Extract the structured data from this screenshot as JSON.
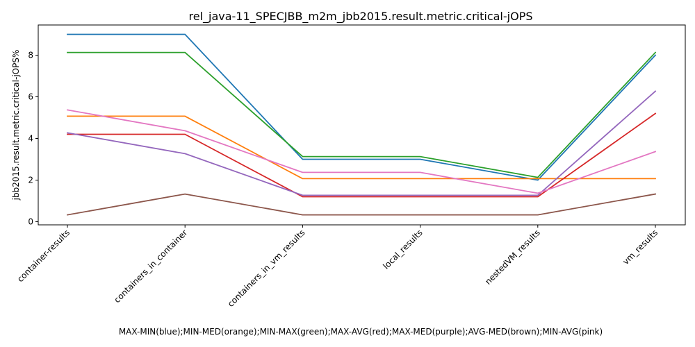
{
  "chart_data": {
    "type": "line",
    "title": "rel_java-11_SPECJBB_m2m_jbb2015.result.metric.critical-jOPS",
    "xlabel": "MAX-MIN(blue);MIN-MED(orange);MIN-MAX(green);MAX-AVG(red);MAX-MED(purple);AVG-MED(brown);MIN-AVG(pink)",
    "ylabel": "jbb2015.result.metric.critical-jOPS%",
    "categories": [
      "container-results",
      "containers_in_container",
      "containers_in_vm_results",
      "local_results",
      "nestedVM_results",
      "vm_results"
    ],
    "ylim": [
      -0.15,
      9.45
    ],
    "yticks": [
      0,
      2,
      4,
      6,
      8
    ],
    "grid": false,
    "legend": "none",
    "series": [
      {
        "color": "#1f77b4",
        "values": [
          9.0,
          9.0,
          3.0,
          3.0,
          2.0,
          8.0
        ]
      },
      {
        "color": "#ff7f0e",
        "values": [
          5.07,
          5.07,
          2.07,
          2.07,
          2.07,
          2.07
        ]
      },
      {
        "color": "#2ca02c",
        "values": [
          8.13,
          8.13,
          3.13,
          3.13,
          2.13,
          8.13
        ]
      },
      {
        "color": "#d62728",
        "values": [
          4.2,
          4.2,
          1.2,
          1.2,
          1.2,
          5.2
        ]
      },
      {
        "color": "#9467bd",
        "values": [
          4.27,
          3.27,
          1.27,
          1.27,
          1.27,
          6.27
        ]
      },
      {
        "color": "#8c564b",
        "values": [
          0.33,
          1.33,
          0.33,
          0.33,
          0.33,
          1.33
        ]
      },
      {
        "color": "#e377c2",
        "values": [
          5.37,
          4.37,
          2.37,
          2.37,
          1.37,
          3.37
        ]
      }
    ]
  }
}
